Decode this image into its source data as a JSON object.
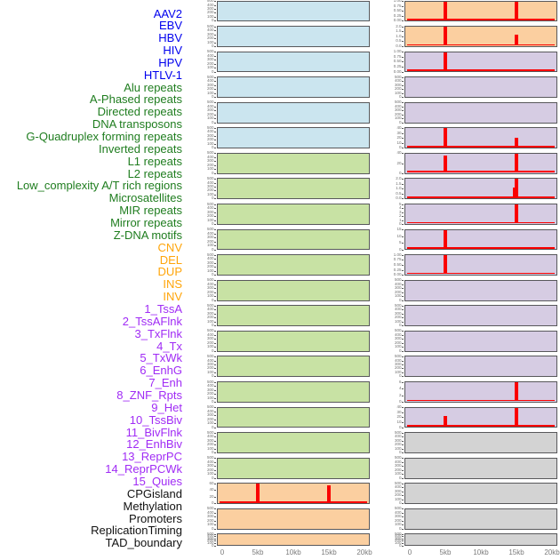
{
  "track_labels": {
    "group_colors": {
      "virus": "#0000EE",
      "repeats": "#1F7D1F",
      "sv": "#FFA50A",
      "chromhmm": "#A02BF5",
      "other": "#111111"
    },
    "items": [
      {
        "text": "AAV2",
        "group": "virus"
      },
      {
        "text": "EBV",
        "group": "virus"
      },
      {
        "text": "HBV",
        "group": "virus"
      },
      {
        "text": "HIV",
        "group": "virus"
      },
      {
        "text": "HPV",
        "group": "virus"
      },
      {
        "text": "HTLV-1",
        "group": "virus"
      },
      {
        "text": "Alu repeats",
        "group": "repeats"
      },
      {
        "text": "A-Phased repeats",
        "group": "repeats"
      },
      {
        "text": "Directed repeats",
        "group": "repeats"
      },
      {
        "text": "DNA transposons",
        "group": "repeats"
      },
      {
        "text": "G-Quadruplex forming repeats",
        "group": "repeats"
      },
      {
        "text": "Inverted repeats",
        "group": "repeats"
      },
      {
        "text": "L1 repeats",
        "group": "repeats"
      },
      {
        "text": "L2 repeats",
        "group": "repeats"
      },
      {
        "text": "Low_complexity A/T rich regions",
        "group": "repeats"
      },
      {
        "text": "Microsatellites",
        "group": "repeats"
      },
      {
        "text": "MIR repeats",
        "group": "repeats"
      },
      {
        "text": "Mirror repeats",
        "group": "repeats"
      },
      {
        "text": "Z-DNA motifs",
        "group": "repeats"
      },
      {
        "text": "CNV",
        "group": "sv"
      },
      {
        "text": "DEL",
        "group": "sv"
      },
      {
        "text": "DUP",
        "group": "sv"
      },
      {
        "text": "INS",
        "group": "sv"
      },
      {
        "text": "INV",
        "group": "sv"
      },
      {
        "text": "1_TssA",
        "group": "chromhmm"
      },
      {
        "text": "2_TssAFlnk",
        "group": "chromhmm"
      },
      {
        "text": "3_TxFlnk",
        "group": "chromhmm"
      },
      {
        "text": "4_Tx",
        "group": "chromhmm"
      },
      {
        "text": "5_TxWk",
        "group": "chromhmm"
      },
      {
        "text": "6_EnhG",
        "group": "chromhmm"
      },
      {
        "text": "7_Enh",
        "group": "chromhmm"
      },
      {
        "text": "8_ZNF_Rpts",
        "group": "chromhmm"
      },
      {
        "text": "9_Het",
        "group": "chromhmm"
      },
      {
        "text": "10_TssBiv",
        "group": "chromhmm"
      },
      {
        "text": "11_BivFlnk",
        "group": "chromhmm"
      },
      {
        "text": "12_EnhBiv",
        "group": "chromhmm"
      },
      {
        "text": "13_ReprPC",
        "group": "chromhmm"
      },
      {
        "text": "14_ReprPCWk",
        "group": "chromhmm"
      },
      {
        "text": "15_Quies",
        "group": "chromhmm"
      },
      {
        "text": "CPGisland",
        "group": "other"
      },
      {
        "text": "Methylation",
        "group": "other"
      },
      {
        "text": "Promoters",
        "group": "other"
      },
      {
        "text": "ReplicationTiming",
        "group": "other"
      },
      {
        "text": "TAD_boundary",
        "group": "other"
      }
    ]
  },
  "colors": {
    "panel_fills": {
      "blue": "#CBE5EF",
      "green": "#C8E2A4",
      "orange": "#FBCFA0",
      "purple": "#D6CCE3",
      "gray": "#D3D3D3"
    },
    "panel_border": "#58585B",
    "signal_red": "#FA0000",
    "axis_text": "#7a7a7a"
  },
  "chart_data": {
    "type": "bar",
    "layout": "small-multiples-2-columns",
    "x_axis": {
      "tick_labels": [
        "0",
        "5kb",
        "10kb",
        "15kb",
        "20kb"
      ],
      "tick_kb": [
        0,
        5,
        10,
        15,
        20
      ],
      "range_kb": [
        0,
        20
      ],
      "unit": "kb"
    },
    "columns": [
      {
        "panels": [
          {
            "track": "AAV2",
            "fill": "blue",
            "y_ticks": [
              "500",
              "400",
              "300",
              "200",
              "100",
              "0"
            ],
            "baseline": false,
            "spikes": []
          },
          {
            "track": "EBV",
            "fill": "blue",
            "y_ticks": [
              "500",
              "400",
              "300",
              "200",
              "100",
              "0"
            ],
            "baseline": false,
            "spikes": []
          },
          {
            "track": "HBV",
            "fill": "blue",
            "y_ticks": [
              "500",
              "400",
              "300",
              "200",
              "100",
              "0"
            ],
            "baseline": false,
            "spikes": []
          },
          {
            "track": "HIV",
            "fill": "blue",
            "y_ticks": [
              "500",
              "400",
              "300",
              "200",
              "100",
              "0"
            ],
            "baseline": false,
            "spikes": []
          },
          {
            "track": "HPV",
            "fill": "blue",
            "y_ticks": [
              "500",
              "400",
              "300",
              "200",
              "100",
              "0"
            ],
            "baseline": false,
            "spikes": []
          },
          {
            "track": "HTLV-1",
            "fill": "blue",
            "y_ticks": [
              "500",
              "400",
              "300",
              "200",
              "100",
              "0"
            ],
            "baseline": false,
            "spikes": []
          },
          {
            "track": "Alu repeats",
            "fill": "green",
            "y_ticks": [
              "500",
              "400",
              "300",
              "200",
              "100",
              "0"
            ],
            "baseline": false,
            "spikes": []
          },
          {
            "track": "A-Phased repeats",
            "fill": "green",
            "y_ticks": [
              "500",
              "400",
              "300",
              "200",
              "100",
              "0"
            ],
            "baseline": false,
            "spikes": []
          },
          {
            "track": "Directed repeats",
            "fill": "green",
            "y_ticks": [
              "500",
              "400",
              "300",
              "200",
              "100",
              "0"
            ],
            "baseline": false,
            "spikes": []
          },
          {
            "track": "DNA transposons",
            "fill": "green",
            "y_ticks": [
              "500",
              "400",
              "300",
              "200",
              "100",
              "0"
            ],
            "baseline": false,
            "spikes": []
          },
          {
            "track": "G-Quadruplex forming repeats",
            "fill": "green",
            "y_ticks": [
              "500",
              "400",
              "300",
              "200",
              "100",
              "0"
            ],
            "baseline": false,
            "spikes": []
          },
          {
            "track": "Inverted repeats",
            "fill": "green",
            "y_ticks": [
              "500",
              "400",
              "300",
              "200",
              "100",
              "0"
            ],
            "baseline": false,
            "spikes": []
          },
          {
            "track": "L1 repeats",
            "fill": "green",
            "y_ticks": [
              "500",
              "400",
              "300",
              "200",
              "100",
              "0"
            ],
            "baseline": false,
            "spikes": []
          },
          {
            "track": "L2 repeats",
            "fill": "green",
            "y_ticks": [
              "500",
              "400",
              "300",
              "200",
              "100",
              "0"
            ],
            "baseline": false,
            "spikes": []
          },
          {
            "track": "Low_complexity A/T rich regions",
            "fill": "green",
            "y_ticks": [
              "500",
              "400",
              "300",
              "200",
              "100",
              "0"
            ],
            "baseline": false,
            "spikes": []
          },
          {
            "track": "Microsatellites",
            "fill": "green",
            "y_ticks": [
              "500",
              "400",
              "300",
              "200",
              "100",
              "0"
            ],
            "baseline": false,
            "spikes": []
          },
          {
            "track": "MIR repeats",
            "fill": "green",
            "y_ticks": [
              "500",
              "400",
              "300",
              "200",
              "100",
              "0"
            ],
            "baseline": false,
            "spikes": []
          },
          {
            "track": "Mirror repeats",
            "fill": "green",
            "y_ticks": [
              "500",
              "400",
              "300",
              "200",
              "100",
              "0"
            ],
            "baseline": false,
            "spikes": []
          },
          {
            "track": "Z-DNA motifs",
            "fill": "green",
            "y_ticks": [
              "500",
              "400",
              "300",
              "200",
              "100",
              "0"
            ],
            "baseline": false,
            "spikes": []
          },
          {
            "track": "CNV",
            "fill": "orange",
            "y_ticks": [
              "60",
              "40",
              "20",
              "0"
            ],
            "baseline": true,
            "spikes": [
              {
                "kb": 5,
                "frac": 0.97
              },
              {
                "kb": 15,
                "frac": 0.92
              }
            ]
          },
          {
            "track": "DEL",
            "fill": "orange",
            "y_ticks": [
              "500",
              "400",
              "300",
              "200",
              "100",
              "0"
            ],
            "baseline": false,
            "spikes": []
          },
          {
            "track": "DUP",
            "fill": "orange",
            "y_ticks": [
              "500",
              "400",
              "300",
              "200",
              "100",
              "0"
            ],
            "baseline": false,
            "spikes": []
          }
        ]
      },
      {
        "panels": [
          {
            "track": "INS",
            "fill": "orange",
            "y_ticks": [
              "1.00",
              "0.75",
              "0.50",
              "0.25",
              "0.00"
            ],
            "baseline": true,
            "spikes": [
              {
                "kb": 5,
                "frac": 1.0
              },
              {
                "kb": 15,
                "frac": 1.0
              }
            ]
          },
          {
            "track": "INV",
            "fill": "orange",
            "y_ticks": [
              "2.0",
              "1.5",
              "1.0",
              "0.5",
              "0.0"
            ],
            "baseline": true,
            "spikes": [
              {
                "kb": 5,
                "frac": 1.0
              },
              {
                "kb": 15,
                "frac": 0.58
              }
            ]
          },
          {
            "track": "1_TssA",
            "fill": "purple",
            "y_ticks": [
              "1.00",
              "0.75",
              "0.50",
              "0.25",
              "0.00"
            ],
            "baseline": true,
            "spikes": [
              {
                "kb": 5,
                "frac": 1.0
              }
            ]
          },
          {
            "track": "2_TssAFlnk",
            "fill": "purple",
            "y_ticks": [
              "500",
              "400",
              "300",
              "200",
              "100",
              "0"
            ],
            "baseline": false,
            "spikes": []
          },
          {
            "track": "3_TxFlnk",
            "fill": "purple",
            "y_ticks": [
              "500",
              "400",
              "300",
              "200",
              "100",
              "0"
            ],
            "baseline": false,
            "spikes": []
          },
          {
            "track": "4_Tx",
            "fill": "purple",
            "y_ticks": [
              "40",
              "30",
              "20",
              "10",
              "0"
            ],
            "baseline": true,
            "spikes": [
              {
                "kb": 5,
                "frac": 1.0
              },
              {
                "kb": 15,
                "frac": 0.47
              }
            ]
          },
          {
            "track": "5_TxWk",
            "fill": "purple",
            "y_ticks": [
              "40",
              "20",
              "0"
            ],
            "baseline": true,
            "spikes": [
              {
                "kb": 5,
                "frac": 0.9
              },
              {
                "kb": 15,
                "frac": 1.0
              }
            ]
          },
          {
            "track": "6_EnhG",
            "fill": "purple",
            "y_ticks": [
              "2.0",
              "1.5",
              "1.0",
              "0.5",
              "0.0"
            ],
            "baseline": true,
            "spikes": [
              {
                "kb": 14.6,
                "frac": 0.55,
                "w": 2.5
              },
              {
                "kb": 15,
                "frac": 1.0
              }
            ]
          },
          {
            "track": "7_Enh",
            "fill": "purple",
            "y_ticks": [
              "5",
              "4",
              "3",
              "2",
              "1",
              "0"
            ],
            "baseline": true,
            "spikes": [
              {
                "kb": 15,
                "frac": 1.0
              }
            ]
          },
          {
            "track": "8_ZNF_Rpts",
            "fill": "purple",
            "y_ticks": [
              "15",
              "10",
              "5",
              "0"
            ],
            "baseline": true,
            "spikes": [
              {
                "kb": 5,
                "frac": 1.0
              }
            ]
          },
          {
            "track": "9_Het",
            "fill": "purple",
            "y_ticks": [
              "1.00",
              "0.75",
              "0.50",
              "0.25",
              "0.00"
            ],
            "baseline": true,
            "spikes": [
              {
                "kb": 5,
                "frac": 1.0
              }
            ]
          },
          {
            "track": "10_TssBiv",
            "fill": "purple",
            "y_ticks": [
              "500",
              "400",
              "300",
              "200",
              "100",
              "0"
            ],
            "baseline": false,
            "spikes": []
          },
          {
            "track": "11_BivFlnk",
            "fill": "purple",
            "y_ticks": [
              "500",
              "400",
              "300",
              "200",
              "100",
              "0"
            ],
            "baseline": false,
            "spikes": []
          },
          {
            "track": "12_EnhBiv",
            "fill": "purple",
            "y_ticks": [
              "500",
              "400",
              "300",
              "200",
              "100",
              "0"
            ],
            "baseline": false,
            "spikes": []
          },
          {
            "track": "13_ReprPC",
            "fill": "purple",
            "y_ticks": [
              "500",
              "400",
              "300",
              "200",
              "100",
              "0"
            ],
            "baseline": false,
            "spikes": []
          },
          {
            "track": "14_ReprPCWk",
            "fill": "purple",
            "y_ticks": [
              "6",
              "4",
              "2",
              "0"
            ],
            "baseline": true,
            "spikes": [
              {
                "kb": 15,
                "frac": 1.0
              }
            ]
          },
          {
            "track": "15_Quies",
            "fill": "purple",
            "y_ticks": [
              "40",
              "30",
              "20",
              "10",
              "0"
            ],
            "baseline": true,
            "spikes": [
              {
                "kb": 5,
                "frac": 0.55
              },
              {
                "kb": 15,
                "frac": 1.0
              }
            ]
          },
          {
            "track": "CPGisland",
            "fill": "gray",
            "y_ticks": [
              "500",
              "400",
              "300",
              "200",
              "100",
              "0"
            ],
            "baseline": false,
            "spikes": []
          },
          {
            "track": "Methylation",
            "fill": "gray",
            "y_ticks": [
              "500",
              "400",
              "300",
              "200",
              "100",
              "0"
            ],
            "baseline": false,
            "spikes": []
          },
          {
            "track": "Promoters",
            "fill": "gray",
            "y_ticks": [
              "500",
              "400",
              "300",
              "200",
              "100",
              "0"
            ],
            "baseline": false,
            "spikes": []
          },
          {
            "track": "ReplicationTiming",
            "fill": "gray",
            "y_ticks": [
              "500",
              "400",
              "300",
              "200",
              "100",
              "0"
            ],
            "baseline": false,
            "spikes": []
          },
          {
            "track": "TAD_boundary",
            "fill": "gray",
            "y_ticks": [
              "500",
              "400",
              "300",
              "200",
              "100",
              "0"
            ],
            "baseline": false,
            "spikes": []
          }
        ]
      }
    ]
  }
}
